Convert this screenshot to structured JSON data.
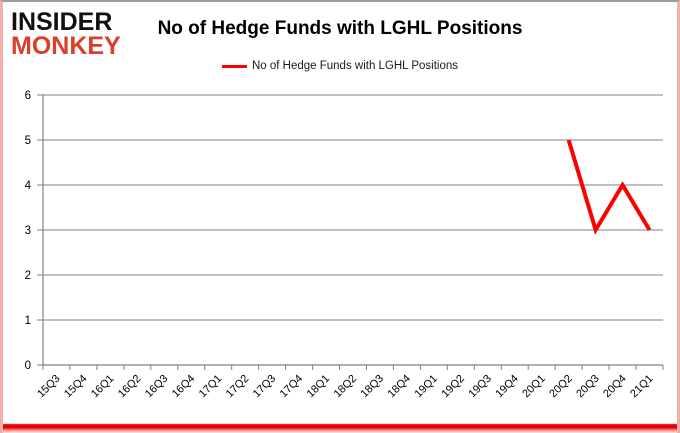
{
  "logo": {
    "line1": "INSIDER",
    "line2": "MONKEY",
    "brand_color": "#d8402c"
  },
  "header": {
    "title": "No of Hedge Funds with LGHL Positions"
  },
  "legend": {
    "label": "No of Hedge Funds with LGHL Positions",
    "color": "#ff0000"
  },
  "chart_data": {
    "type": "line",
    "title": "No of Hedge Funds with LGHL Positions",
    "xlabel": "",
    "ylabel": "",
    "categories": [
      "15Q3",
      "15Q4",
      "16Q1",
      "16Q2",
      "16Q3",
      "16Q4",
      "17Q1",
      "17Q2",
      "17Q3",
      "17Q4",
      "18Q1",
      "18Q2",
      "18Q3",
      "18Q4",
      "19Q1",
      "19Q2",
      "19Q3",
      "19Q4",
      "20Q1",
      "20Q2",
      "20Q3",
      "20Q4",
      "21Q1"
    ],
    "series": [
      {
        "name": "No of Hedge Funds with LGHL Positions",
        "color": "#ff0000",
        "values": [
          null,
          null,
          null,
          null,
          null,
          null,
          null,
          null,
          null,
          null,
          null,
          null,
          null,
          null,
          null,
          null,
          null,
          null,
          null,
          5,
          3,
          4,
          3
        ]
      }
    ],
    "ylim": [
      0,
      6
    ],
    "yticks": [
      0,
      1,
      2,
      3,
      4,
      5,
      6
    ],
    "grid": true,
    "gridline_color": "#808080",
    "axis_color": "#808080",
    "legend_position": "top"
  }
}
